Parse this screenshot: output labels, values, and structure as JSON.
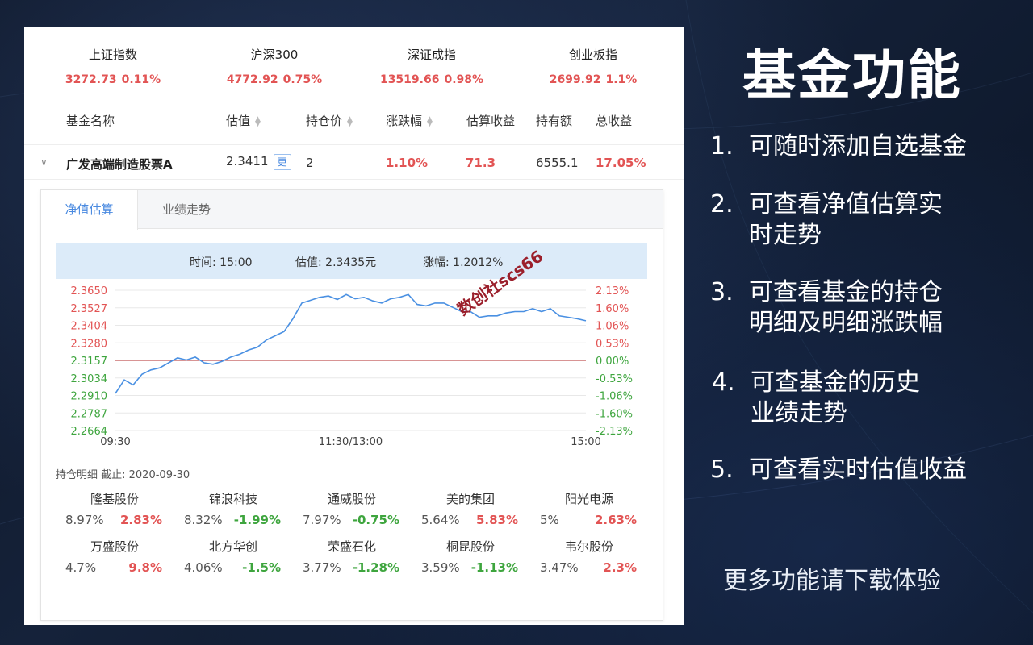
{
  "indices": [
    {
      "name": "上证指数",
      "value": "3272.73",
      "change": "0.11%"
    },
    {
      "name": "沪深300",
      "value": "4772.92",
      "change": "0.75%"
    },
    {
      "name": "深证成指",
      "value": "13519.66",
      "change": "0.98%"
    },
    {
      "name": "创业板指",
      "value": "2699.92",
      "change": "1.1%"
    }
  ],
  "columns": {
    "name": "基金名称",
    "estimate": "估值",
    "cost": "持仓价",
    "change": "涨跌幅",
    "est_profit": "估算收益",
    "holding": "持有额",
    "total_profit": "总收益"
  },
  "fund": {
    "name": "广发高端制造股票A",
    "estimate": "2.3411",
    "badge": "更",
    "cost": "2",
    "change": "1.10%",
    "est_profit": "71.3",
    "holding": "6555.1",
    "total_profit": "17.05%"
  },
  "tabs": [
    "净值估算",
    "业绩走势"
  ],
  "infobar": {
    "time": "时间: 15:00",
    "value": "估值: 2.3435元",
    "change": "涨幅: 1.2012%"
  },
  "chart_data": {
    "type": "line",
    "x_labels": [
      "09:30",
      "11:30/13:00",
      "15:00"
    ],
    "left_ticks": [
      "2.3650",
      "2.3527",
      "2.3404",
      "2.3280",
      "2.3157",
      "2.3034",
      "2.2910",
      "2.2787",
      "2.2664"
    ],
    "right_ticks": [
      "2.13%",
      "1.60%",
      "1.06%",
      "0.53%",
      "0.00%",
      "-0.53%",
      "-1.06%",
      "-1.60%",
      "-2.13%"
    ],
    "ylim": [
      2.2664,
      2.365
    ],
    "baseline": 2.3157,
    "series": [
      {
        "values": [
          2.2925,
          2.302,
          2.2985,
          2.306,
          2.309,
          2.3105,
          2.314,
          2.3175,
          2.316,
          2.318,
          2.314,
          2.313,
          2.315,
          2.318,
          2.32,
          2.323,
          2.325,
          2.33,
          2.333,
          2.336,
          2.345,
          2.356,
          2.358,
          2.36,
          2.361,
          2.3585,
          2.362,
          2.359,
          2.36,
          2.3575,
          2.356,
          2.359,
          2.36,
          2.362,
          2.355,
          2.354,
          2.356,
          2.356,
          2.353,
          2.35,
          2.35,
          2.346,
          2.347,
          2.347,
          2.349,
          2.35,
          2.35,
          2.352,
          2.35,
          2.352,
          2.347,
          2.346,
          2.345,
          2.3435
        ]
      }
    ]
  },
  "holdings_title": "持仓明细 截止: 2020-09-30",
  "holdings": [
    {
      "name": "隆基股份",
      "weight": "8.97%",
      "change": "2.83%",
      "dir": "up"
    },
    {
      "name": "锦浪科技",
      "weight": "8.32%",
      "change": "-1.99%",
      "dir": "down"
    },
    {
      "name": "通威股份",
      "weight": "7.97%",
      "change": "-0.75%",
      "dir": "down"
    },
    {
      "name": "美的集团",
      "weight": "5.64%",
      "change": "5.83%",
      "dir": "up"
    },
    {
      "name": "阳光电源",
      "weight": "5%",
      "change": "2.63%",
      "dir": "up"
    },
    {
      "name": "万盛股份",
      "weight": "4.7%",
      "change": "9.8%",
      "dir": "up"
    },
    {
      "name": "北方华创",
      "weight": "4.06%",
      "change": "-1.5%",
      "dir": "down"
    },
    {
      "name": "荣盛石化",
      "weight": "3.77%",
      "change": "-1.28%",
      "dir": "down"
    },
    {
      "name": "桐昆股份",
      "weight": "3.59%",
      "change": "-1.13%",
      "dir": "down"
    },
    {
      "name": "韦尔股份",
      "weight": "3.47%",
      "change": "2.3%",
      "dir": "up"
    }
  ],
  "watermark": "数创社scs66",
  "promo": {
    "title": "基金功能",
    "features": [
      {
        "num": "1.",
        "line1": "可随时添加自选基金",
        "line2": ""
      },
      {
        "num": "2.",
        "line1": "可查看净值估算实",
        "line2": "时走势"
      },
      {
        "num": "3.",
        "line1": "可查看基金的持仓",
        "line2": "明细及明细涨跌幅"
      },
      {
        "num": "4.",
        "line1": "可查基金的历史",
        "line2": "业绩走势"
      },
      {
        "num": "5.",
        "line1": "可查看实时估值收益",
        "line2": ""
      }
    ],
    "cta": "更多功能请下载体验"
  },
  "colors": {
    "up": "#e25454",
    "down": "#3ea53e",
    "accent": "#4a8ae0",
    "line": "#4a90e2"
  }
}
